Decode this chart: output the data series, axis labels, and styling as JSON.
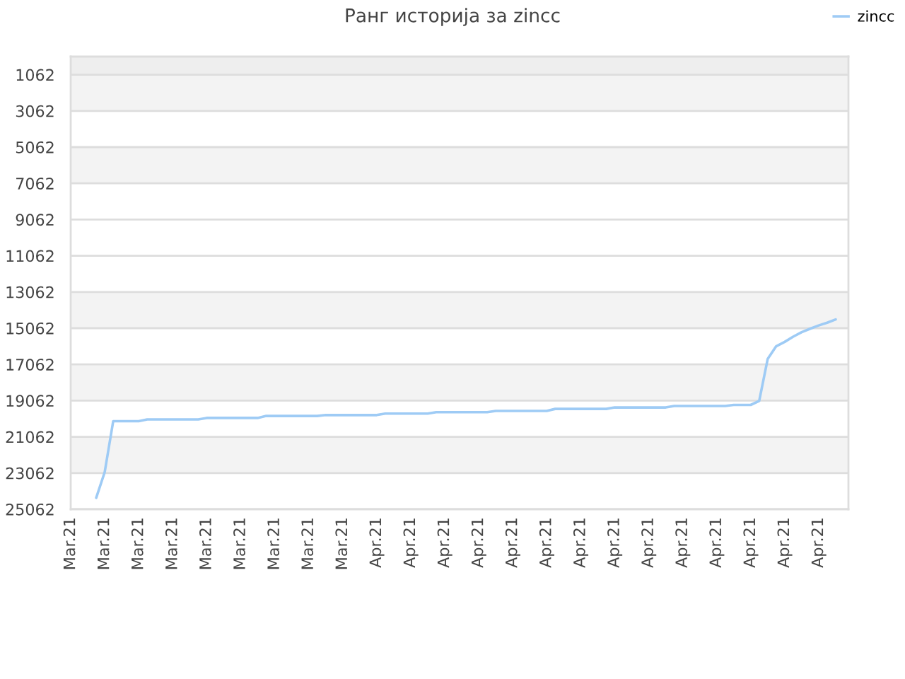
{
  "chart_data": {
    "type": "line",
    "title": "Ранг историја за zincc",
    "categories": [
      "Mar.21",
      null,
      null,
      null,
      "Mar.21",
      null,
      null,
      null,
      "Mar.21",
      null,
      null,
      null,
      "Mar.21",
      null,
      null,
      null,
      "Mar.21",
      null,
      null,
      null,
      "Mar.21",
      null,
      null,
      null,
      "Mar.21",
      null,
      null,
      null,
      "Mar.21",
      null,
      null,
      null,
      "Mar.21",
      null,
      null,
      null,
      "Apr.21",
      null,
      null,
      null,
      "Apr.21",
      null,
      null,
      null,
      "Apr.21",
      null,
      null,
      null,
      "Apr.21",
      null,
      null,
      null,
      "Apr.21",
      null,
      null,
      null,
      "Apr.21",
      null,
      null,
      null,
      "Apr.21",
      null,
      null,
      null,
      "Apr.21",
      null,
      null,
      null,
      "Apr.21",
      null,
      null,
      null,
      "Apr.21",
      null,
      null,
      null,
      "Apr.21",
      null,
      null,
      null,
      "Apr.21",
      null,
      null,
      null,
      "Apr.21",
      null,
      null,
      null,
      "Apr.21",
      null,
      null,
      null
    ],
    "series": [
      {
        "name": "zincc",
        "color": "#9ecbf5",
        "values": [
          null,
          null,
          null,
          24430,
          23010,
          20200,
          20200,
          20200,
          20200,
          20100,
          20100,
          20100,
          20100,
          20100,
          20100,
          20100,
          20020,
          20020,
          20020,
          20020,
          20020,
          20020,
          20020,
          19910,
          19910,
          19910,
          19910,
          19910,
          19910,
          19910,
          19860,
          19860,
          19860,
          19860,
          19860,
          19860,
          19860,
          19780,
          19780,
          19780,
          19780,
          19780,
          19780,
          19700,
          19700,
          19700,
          19700,
          19700,
          19700,
          19700,
          19630,
          19630,
          19630,
          19630,
          19630,
          19630,
          19630,
          19520,
          19520,
          19520,
          19520,
          19520,
          19520,
          19520,
          19440,
          19440,
          19440,
          19440,
          19440,
          19440,
          19440,
          19360,
          19360,
          19360,
          19360,
          19360,
          19360,
          19360,
          19300,
          19300,
          19300,
          19080,
          16760,
          16060,
          15820,
          15530,
          15280,
          15090,
          14910,
          14760,
          14580,
          null
        ]
      }
    ],
    "ylim": [
      25062,
      62
    ],
    "yticks": [
      1062,
      3062,
      5062,
      7062,
      9062,
      11062,
      13062,
      15062,
      17062,
      19062,
      21062,
      23062,
      25062
    ],
    "bands": [
      {
        "axis": "y",
        "from": 62,
        "to": 1062,
        "color": "#eeeeee"
      },
      {
        "axis": "y",
        "from": 1062,
        "to": 3062,
        "color": "#f3f3f3"
      },
      {
        "axis": "y",
        "from": 5062,
        "to": 7062,
        "color": "#f3f3f3"
      },
      {
        "axis": "y",
        "from": 13062,
        "to": 15062,
        "color": "#f3f3f3"
      },
      {
        "axis": "y",
        "from": 17062,
        "to": 19062,
        "color": "#f3f3f3"
      },
      {
        "axis": "y",
        "from": 21062,
        "to": 23062,
        "color": "#f3f3f3"
      }
    ],
    "grid": "y",
    "legend": "top right",
    "marker": "none",
    "line_style": "solid"
  }
}
